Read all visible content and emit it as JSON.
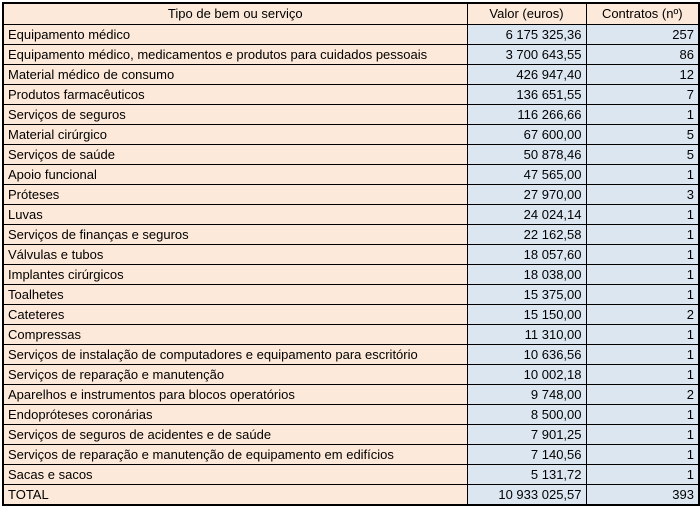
{
  "table": {
    "columns": [
      {
        "label": "Tipo de bem ou serviço"
      },
      {
        "label": "Valor (euros)"
      },
      {
        "label": "Contratos (nº)"
      }
    ],
    "rows": [
      {
        "tipo": "Equipamento médico",
        "valor": "6 175 325,36",
        "contratos": "257"
      },
      {
        "tipo": "Equipamento médico, medicamentos e produtos para cuidados pessoais",
        "valor": "3 700 643,55",
        "contratos": "86"
      },
      {
        "tipo": "Material médico de consumo",
        "valor": "426 947,40",
        "contratos": "12"
      },
      {
        "tipo": "Produtos farmacêuticos",
        "valor": "136 651,55",
        "contratos": "7"
      },
      {
        "tipo": "Serviços de seguros",
        "valor": "116 266,66",
        "contratos": "1"
      },
      {
        "tipo": "Material cirúrgico",
        "valor": "67 600,00",
        "contratos": "5"
      },
      {
        "tipo": "Serviços de saúde",
        "valor": "50 878,46",
        "contratos": "5"
      },
      {
        "tipo": "Apoio funcional",
        "valor": "47 565,00",
        "contratos": "1"
      },
      {
        "tipo": "Próteses",
        "valor": "27 970,00",
        "contratos": "3"
      },
      {
        "tipo": "Luvas",
        "valor": "24 024,14",
        "contratos": "1"
      },
      {
        "tipo": "Serviços de finanças e seguros",
        "valor": "22 162,58",
        "contratos": "1"
      },
      {
        "tipo": "Válvulas e tubos",
        "valor": "18 057,60",
        "contratos": "1"
      },
      {
        "tipo": "Implantes cirúrgicos",
        "valor": "18 038,00",
        "contratos": "1"
      },
      {
        "tipo": "Toalhetes",
        "valor": "15 375,00",
        "contratos": "1"
      },
      {
        "tipo": "Cateteres",
        "valor": "15 150,00",
        "contratos": "2"
      },
      {
        "tipo": "Compressas",
        "valor": "11 310,00",
        "contratos": "1"
      },
      {
        "tipo": "Serviços de instalação de computadores e equipamento para escritório",
        "valor": "10 636,56",
        "contratos": "1"
      },
      {
        "tipo": "Serviços de reparação e manutenção",
        "valor": "10 002,18",
        "contratos": "1"
      },
      {
        "tipo": "Aparelhos e instrumentos para blocos operatórios",
        "valor": "9 748,00",
        "contratos": "2"
      },
      {
        "tipo": "Endopróteses coronárias",
        "valor": "8 500,00",
        "contratos": "1"
      },
      {
        "tipo": "Serviços de seguros de acidentes e de saúde",
        "valor": "7 901,25",
        "contratos": "1"
      },
      {
        "tipo": "Serviços de reparação e manutenção de equipamento em edifícios",
        "valor": "7 140,56",
        "contratos": "1"
      },
      {
        "tipo": "Sacas e sacos",
        "valor": "5 131,72",
        "contratos": "1"
      },
      {
        "tipo": "TOTAL",
        "valor": "10 933 025,57",
        "contratos": "393"
      }
    ]
  },
  "colors": {
    "header_fill": "#FDE9D9",
    "label_fill": "#FDE9D9",
    "value_fill": "#DCE6F1",
    "border": "#000000",
    "text": "#000000"
  },
  "chart_data": {
    "type": "table",
    "columns": [
      "Tipo de bem ou serviço",
      "Valor (euros)",
      "Contratos (nº)"
    ],
    "rows": [
      [
        "Equipamento médico",
        6175325.36,
        257
      ],
      [
        "Equipamento médico, medicamentos e produtos para cuidados pessoais",
        3700643.55,
        86
      ],
      [
        "Material médico de consumo",
        426947.4,
        12
      ],
      [
        "Produtos farmacêuticos",
        136651.55,
        7
      ],
      [
        "Serviços de seguros",
        116266.66,
        1
      ],
      [
        "Material cirúrgico",
        67600.0,
        5
      ],
      [
        "Serviços de saúde",
        50878.46,
        5
      ],
      [
        "Apoio funcional",
        47565.0,
        1
      ],
      [
        "Próteses",
        27970.0,
        3
      ],
      [
        "Luvas",
        24024.14,
        1
      ],
      [
        "Serviços de finanças e seguros",
        22162.58,
        1
      ],
      [
        "Válvulas e tubos",
        18057.6,
        1
      ],
      [
        "Implantes cirúrgicos",
        18038.0,
        1
      ],
      [
        "Toalhetes",
        15375.0,
        1
      ],
      [
        "Cateteres",
        15150.0,
        2
      ],
      [
        "Compressas",
        11310.0,
        1
      ],
      [
        "Serviços de instalação de computadores e equipamento para escritório",
        10636.56,
        1
      ],
      [
        "Serviços de reparação e manutenção",
        10002.18,
        1
      ],
      [
        "Aparelhos e instrumentos para blocos operatórios",
        9748.0,
        2
      ],
      [
        "Endopróteses coronárias",
        8500.0,
        1
      ],
      [
        "Serviços de seguros de acidentes e de saúde",
        7901.25,
        1
      ],
      [
        "Serviços de reparação e manutenção de equipamento em edifícios",
        7140.56,
        1
      ],
      [
        "Sacas e sacos",
        5131.72,
        1
      ]
    ],
    "total_row": [
      "TOTAL",
      10933025.57,
      393
    ],
    "number_format": "pt-PT (space thousands separator, comma decimal)"
  }
}
